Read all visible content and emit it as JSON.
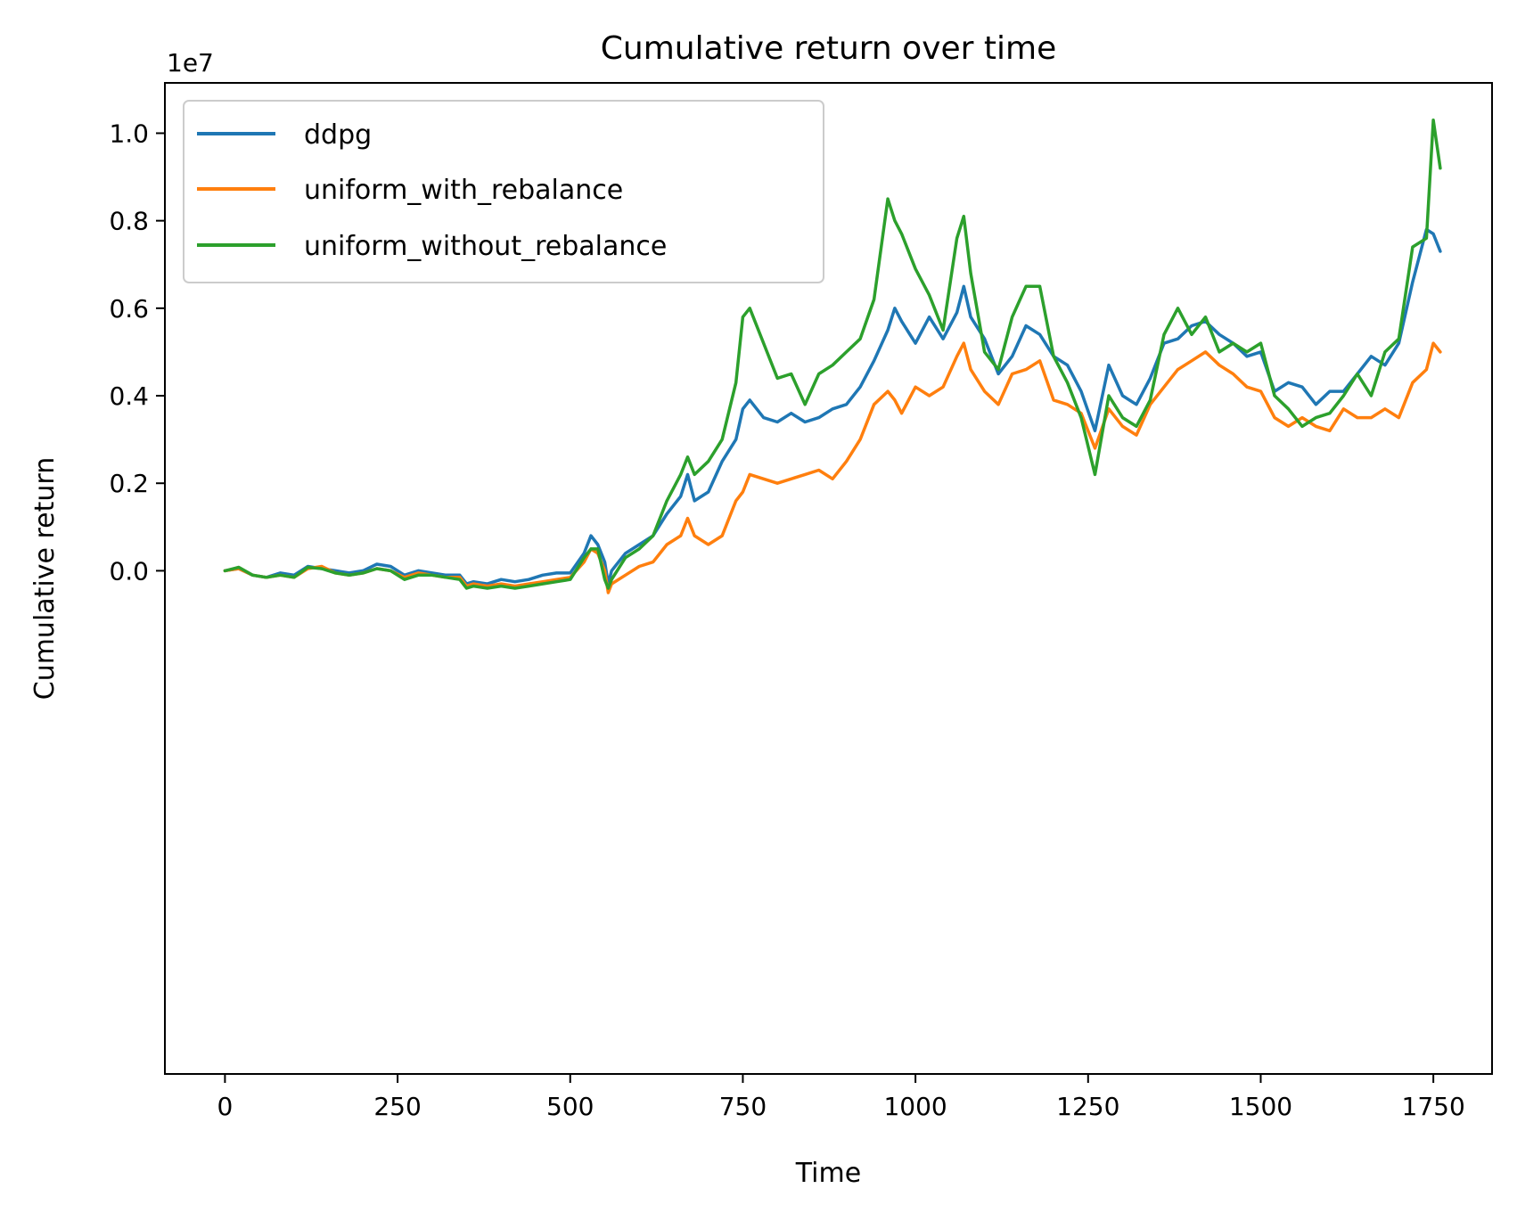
{
  "chart_data": {
    "type": "line",
    "title": "Cumulative return over time",
    "xlabel": "Time",
    "ylabel": "Cumulative return",
    "y_offset_label": "1e7",
    "xlim": [
      -87,
      1835
    ],
    "ylim": [
      -11500000,
      11150000
    ],
    "xticks": [
      0,
      250,
      500,
      750,
      1000,
      1250,
      1500,
      1750
    ],
    "yticks": [
      0,
      2000000,
      4000000,
      6000000,
      8000000,
      10000000
    ],
    "xtick_labels": [
      "0",
      "250",
      "500",
      "750",
      "1000",
      "1250",
      "1500",
      "1750"
    ],
    "ytick_labels": [
      "0.0",
      "0.2",
      "0.4",
      "0.6",
      "0.8",
      "1.0"
    ],
    "grid": false,
    "legend_position": "top-left",
    "series": [
      {
        "name": "ddpg",
        "color": "#1f77b4",
        "x": [
          0,
          20,
          40,
          60,
          80,
          100,
          120,
          140,
          160,
          180,
          200,
          220,
          240,
          260,
          280,
          300,
          320,
          340,
          350,
          360,
          380,
          400,
          420,
          440,
          460,
          480,
          500,
          520,
          530,
          540,
          550,
          555,
          560,
          580,
          600,
          620,
          640,
          660,
          670,
          680,
          700,
          720,
          740,
          750,
          760,
          780,
          800,
          820,
          840,
          860,
          880,
          900,
          920,
          940,
          960,
          970,
          980,
          1000,
          1020,
          1040,
          1060,
          1070,
          1080,
          1100,
          1120,
          1140,
          1160,
          1180,
          1200,
          1220,
          1240,
          1260,
          1280,
          1300,
          1320,
          1340,
          1360,
          1380,
          1400,
          1420,
          1440,
          1460,
          1480,
          1500,
          1520,
          1540,
          1560,
          1580,
          1600,
          1620,
          1640,
          1660,
          1680,
          1700,
          1720,
          1740,
          1750,
          1760
        ],
        "y": [
          0,
          50000,
          -100000,
          -150000,
          -50000,
          -100000,
          100000,
          50000,
          0,
          -50000,
          0,
          150000,
          100000,
          -100000,
          0,
          -50000,
          -100000,
          -100000,
          -300000,
          -250000,
          -300000,
          -200000,
          -250000,
          -200000,
          -100000,
          -50000,
          -50000,
          400000,
          800000,
          600000,
          200000,
          -300000,
          0,
          400000,
          600000,
          800000,
          1300000,
          1700000,
          2200000,
          1600000,
          1800000,
          2500000,
          3000000,
          3700000,
          3900000,
          3500000,
          3400000,
          3600000,
          3400000,
          3500000,
          3700000,
          3800000,
          4200000,
          4800000,
          5500000,
          6000000,
          5700000,
          5200000,
          5800000,
          5300000,
          5900000,
          6500000,
          5800000,
          5300000,
          4500000,
          4900000,
          5600000,
          5400000,
          4900000,
          4700000,
          4100000,
          3200000,
          4700000,
          4000000,
          3800000,
          4400000,
          5200000,
          5300000,
          5600000,
          5700000,
          5400000,
          5200000,
          4900000,
          5000000,
          4100000,
          4300000,
          4200000,
          3800000,
          4100000,
          4100000,
          4500000,
          4900000,
          4700000,
          5200000,
          6600000,
          7800000,
          7700000,
          7300000
        ]
      },
      {
        "name": "uniform_with_rebalance",
        "color": "#ff7f0e",
        "x": [
          0,
          20,
          40,
          60,
          80,
          100,
          120,
          140,
          160,
          180,
          200,
          220,
          240,
          260,
          280,
          300,
          320,
          340,
          350,
          360,
          380,
          400,
          420,
          440,
          460,
          480,
          500,
          520,
          530,
          540,
          550,
          555,
          560,
          580,
          600,
          620,
          640,
          660,
          670,
          680,
          700,
          720,
          740,
          750,
          760,
          780,
          800,
          820,
          840,
          860,
          880,
          900,
          920,
          940,
          960,
          970,
          980,
          1000,
          1020,
          1040,
          1060,
          1070,
          1080,
          1100,
          1120,
          1140,
          1160,
          1180,
          1200,
          1220,
          1240,
          1260,
          1280,
          1300,
          1320,
          1340,
          1360,
          1380,
          1400,
          1420,
          1440,
          1460,
          1480,
          1500,
          1520,
          1540,
          1560,
          1580,
          1600,
          1620,
          1640,
          1660,
          1680,
          1700,
          1720,
          1740,
          1750,
          1760
        ],
        "y": [
          0,
          50000,
          -100000,
          -150000,
          -100000,
          -150000,
          50000,
          100000,
          -50000,
          -100000,
          -50000,
          50000,
          0,
          -150000,
          -50000,
          -100000,
          -150000,
          -150000,
          -350000,
          -300000,
          -350000,
          -300000,
          -350000,
          -300000,
          -250000,
          -200000,
          -150000,
          200000,
          500000,
          400000,
          0,
          -500000,
          -300000,
          -100000,
          100000,
          200000,
          600000,
          800000,
          1200000,
          800000,
          600000,
          800000,
          1600000,
          1800000,
          2200000,
          2100000,
          2000000,
          2100000,
          2200000,
          2300000,
          2100000,
          2500000,
          3000000,
          3800000,
          4100000,
          3900000,
          3600000,
          4200000,
          4000000,
          4200000,
          4900000,
          5200000,
          4600000,
          4100000,
          3800000,
          4500000,
          4600000,
          4800000,
          3900000,
          3800000,
          3600000,
          2800000,
          3700000,
          3300000,
          3100000,
          3800000,
          4200000,
          4600000,
          4800000,
          5000000,
          4700000,
          4500000,
          4200000,
          4100000,
          3500000,
          3300000,
          3500000,
          3300000,
          3200000,
          3700000,
          3500000,
          3500000,
          3700000,
          3500000,
          4300000,
          4600000,
          5200000,
          5000000
        ]
      },
      {
        "name": "uniform_without_rebalance",
        "color": "#2ca02c",
        "x": [
          0,
          20,
          40,
          60,
          80,
          100,
          120,
          140,
          160,
          180,
          200,
          220,
          240,
          260,
          280,
          300,
          320,
          340,
          350,
          360,
          380,
          400,
          420,
          440,
          460,
          480,
          500,
          520,
          530,
          540,
          550,
          555,
          560,
          580,
          600,
          620,
          640,
          660,
          670,
          680,
          700,
          720,
          740,
          750,
          760,
          780,
          800,
          820,
          840,
          860,
          880,
          900,
          920,
          940,
          960,
          970,
          980,
          1000,
          1020,
          1040,
          1060,
          1070,
          1080,
          1100,
          1120,
          1140,
          1160,
          1180,
          1200,
          1220,
          1240,
          1260,
          1280,
          1300,
          1320,
          1340,
          1360,
          1380,
          1400,
          1420,
          1440,
          1460,
          1480,
          1500,
          1520,
          1540,
          1560,
          1580,
          1600,
          1620,
          1640,
          1660,
          1680,
          1700,
          1720,
          1740,
          1750,
          1760
        ],
        "y": [
          0,
          80000,
          -100000,
          -150000,
          -100000,
          -150000,
          80000,
          50000,
          -50000,
          -100000,
          -50000,
          50000,
          0,
          -200000,
          -100000,
          -100000,
          -150000,
          -200000,
          -400000,
          -350000,
          -400000,
          -350000,
          -400000,
          -350000,
          -300000,
          -250000,
          -200000,
          300000,
          500000,
          500000,
          -200000,
          -400000,
          -200000,
          300000,
          500000,
          800000,
          1600000,
          2200000,
          2600000,
          2200000,
          2500000,
          3000000,
          4300000,
          5800000,
          6000000,
          5200000,
          4400000,
          4500000,
          3800000,
          4500000,
          4700000,
          5000000,
          5300000,
          6200000,
          8500000,
          8000000,
          7700000,
          6900000,
          6300000,
          5500000,
          7600000,
          8100000,
          6800000,
          5000000,
          4600000,
          5800000,
          6500000,
          6500000,
          4900000,
          4300000,
          3500000,
          2200000,
          4000000,
          3500000,
          3300000,
          3900000,
          5400000,
          6000000,
          5400000,
          5800000,
          5000000,
          5200000,
          5000000,
          5200000,
          4000000,
          3700000,
          3300000,
          3500000,
          3600000,
          4000000,
          4500000,
          4000000,
          5000000,
          5300000,
          7400000,
          7600000,
          10300000,
          9200000
        ]
      }
    ]
  }
}
